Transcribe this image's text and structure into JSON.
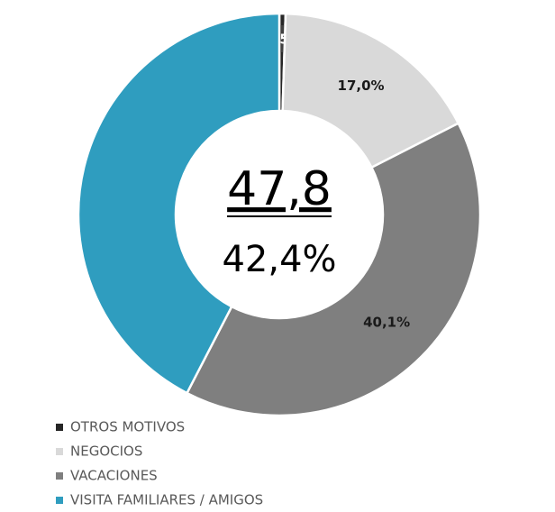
{
  "chart_data": {
    "type": "pie",
    "categories": [
      "OTROS MOTIVOS",
      "NEGOCIOS",
      "VACACIONES",
      "VISITA FAMILIARES / AMIGOS"
    ],
    "values": [
      0.5,
      17.0,
      40.1,
      42.4
    ],
    "value_labels": [
      "0,5%",
      "17,0%",
      "40,1%",
      "42,4%"
    ],
    "colors": [
      "#262626",
      "#d9d9d9",
      "#7f7f7f",
      "#2f9dbf"
    ],
    "center_title": "47,8"
  }
}
